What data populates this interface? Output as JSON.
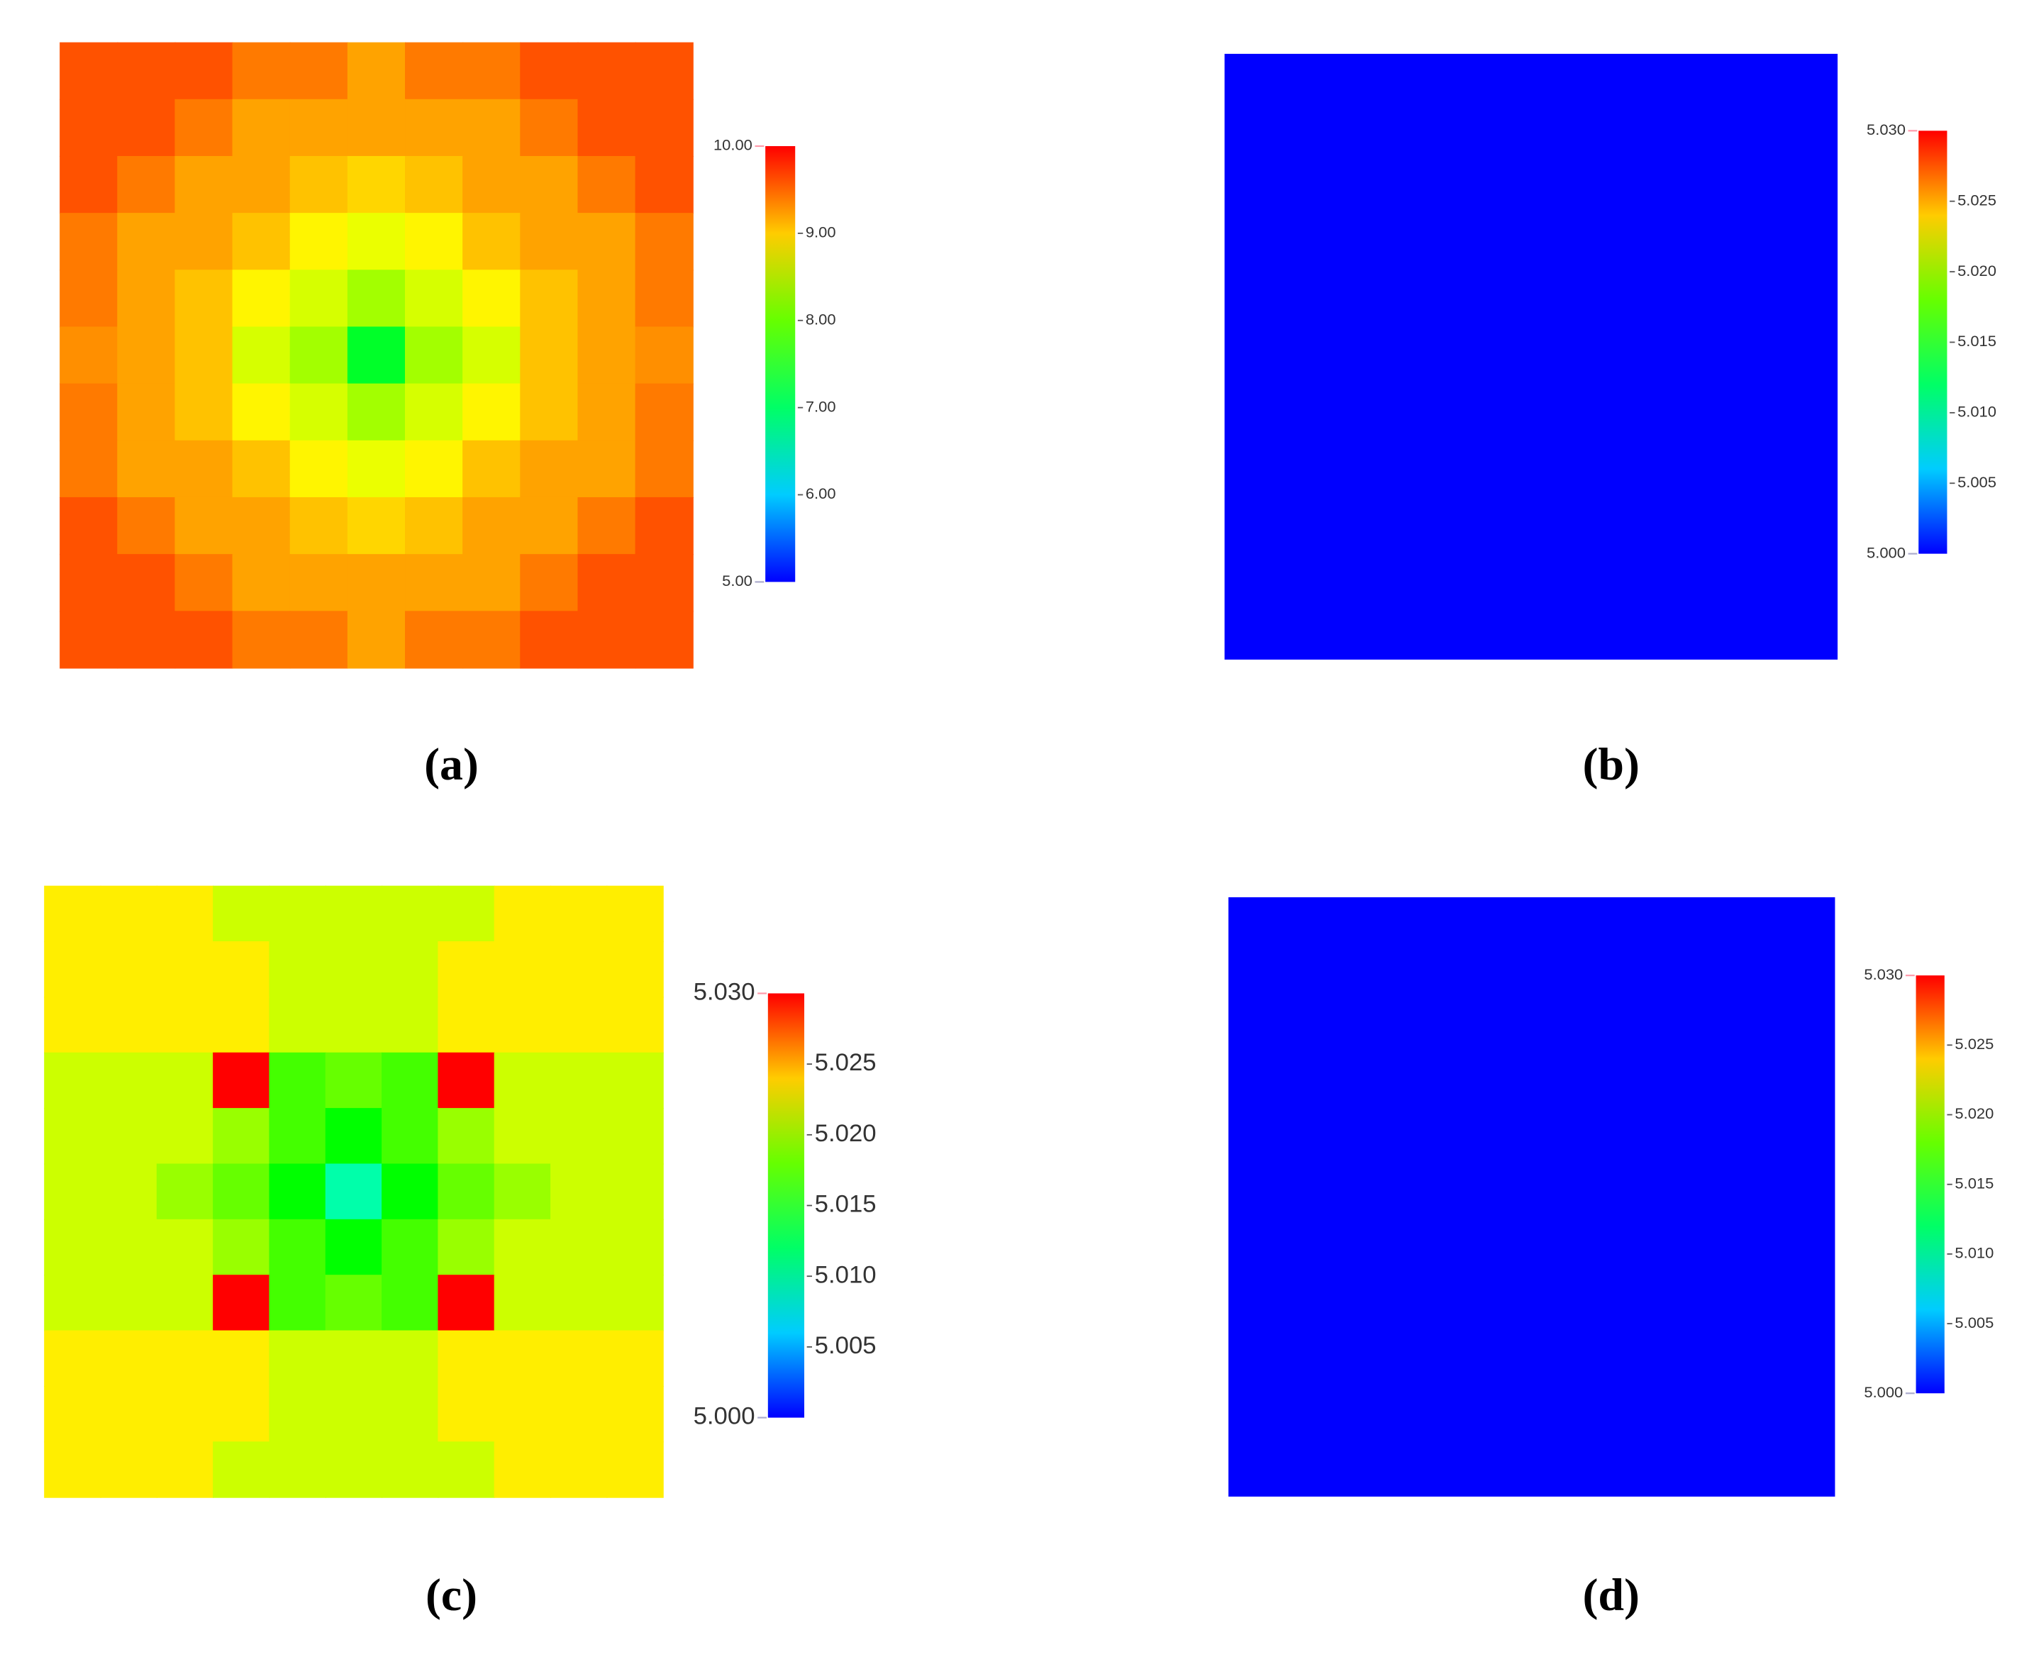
{
  "chart_data": [
    {
      "type": "heatmap",
      "label": "(a)",
      "values": [
        [
          9.6,
          9.6,
          9.6,
          9.4,
          9.4,
          9.2,
          9.4,
          9.4,
          9.6,
          9.6,
          9.6
        ],
        [
          9.6,
          9.6,
          9.4,
          9.2,
          9.2,
          9.2,
          9.2,
          9.2,
          9.4,
          9.6,
          9.6
        ],
        [
          9.6,
          9.4,
          9.2,
          9.2,
          9.05,
          8.95,
          9.05,
          9.2,
          9.2,
          9.4,
          9.6
        ],
        [
          9.4,
          9.2,
          9.2,
          9.05,
          8.8,
          8.65,
          8.8,
          9.05,
          9.2,
          9.2,
          9.4
        ],
        [
          9.4,
          9.2,
          9.05,
          8.8,
          8.55,
          8.3,
          8.55,
          8.8,
          9.05,
          9.2,
          9.4
        ],
        [
          9.3,
          9.2,
          9.05,
          8.55,
          8.3,
          7.3,
          8.3,
          8.55,
          9.05,
          9.2,
          9.3
        ],
        [
          9.4,
          9.2,
          9.05,
          8.8,
          8.55,
          8.3,
          8.55,
          8.8,
          9.05,
          9.2,
          9.4
        ],
        [
          9.4,
          9.2,
          9.2,
          9.05,
          8.8,
          8.65,
          8.8,
          9.05,
          9.2,
          9.2,
          9.4
        ],
        [
          9.6,
          9.4,
          9.2,
          9.2,
          9.05,
          8.95,
          9.05,
          9.2,
          9.2,
          9.4,
          9.6
        ],
        [
          9.6,
          9.6,
          9.4,
          9.2,
          9.2,
          9.2,
          9.2,
          9.2,
          9.4,
          9.6,
          9.6
        ],
        [
          9.6,
          9.6,
          9.6,
          9.4,
          9.4,
          9.2,
          9.4,
          9.4,
          9.6,
          9.6,
          9.6
        ]
      ],
      "clim": [
        5,
        10
      ],
      "cticks": [
        {
          "value": 5,
          "label": "5.00"
        },
        {
          "value": 6,
          "label": "6.00"
        },
        {
          "value": 7,
          "label": "7.00"
        },
        {
          "value": 8,
          "label": "8.00"
        },
        {
          "value": 9,
          "label": "9.00"
        },
        {
          "value": 10,
          "label": "10.00"
        }
      ]
    },
    {
      "type": "heatmap",
      "label": "(b)",
      "values": [
        [
          5
        ]
      ],
      "clim": [
        5,
        5.03
      ],
      "cticks": [
        {
          "value": 5,
          "label": "5.000"
        },
        5.005,
        {
          "value": 5.01,
          "label": "5.010"
        },
        5.015,
        {
          "value": 5.02,
          "label": "5.020"
        },
        5.025,
        {
          "value": 5.03,
          "label": "5.030"
        }
      ]
    },
    {
      "type": "heatmap",
      "label": "(c)",
      "values": [
        [
          5.023,
          5.023,
          5.023,
          5.021,
          5.021,
          5.021,
          5.021,
          5.021,
          5.023,
          5.023,
          5.023
        ],
        [
          5.023,
          5.023,
          5.023,
          5.023,
          5.021,
          5.021,
          5.021,
          5.023,
          5.023,
          5.023,
          5.023
        ],
        [
          5.023,
          5.023,
          5.023,
          5.023,
          5.021,
          5.021,
          5.021,
          5.023,
          5.023,
          5.023,
          5.023
        ],
        [
          5.021,
          5.021,
          5.021,
          5.03,
          5.017,
          5.018,
          5.017,
          5.03,
          5.021,
          5.021,
          5.021
        ],
        [
          5.021,
          5.021,
          5.021,
          5.0195,
          5.017,
          5.015,
          5.017,
          5.0195,
          5.021,
          5.021,
          5.021
        ],
        [
          5.021,
          5.021,
          5.0195,
          5.018,
          5.015,
          5.01,
          5.015,
          5.018,
          5.0195,
          5.021,
          5.021
        ],
        [
          5.021,
          5.021,
          5.021,
          5.0195,
          5.017,
          5.015,
          5.017,
          5.0195,
          5.021,
          5.021,
          5.021
        ],
        [
          5.021,
          5.021,
          5.021,
          5.03,
          5.017,
          5.018,
          5.017,
          5.03,
          5.021,
          5.021,
          5.021
        ],
        [
          5.023,
          5.023,
          5.023,
          5.023,
          5.021,
          5.021,
          5.021,
          5.023,
          5.023,
          5.023,
          5.023
        ],
        [
          5.023,
          5.023,
          5.023,
          5.023,
          5.021,
          5.021,
          5.021,
          5.023,
          5.023,
          5.023,
          5.023
        ],
        [
          5.023,
          5.023,
          5.023,
          5.021,
          5.021,
          5.021,
          5.021,
          5.021,
          5.023,
          5.023,
          5.023
        ]
      ],
      "clim": [
        5,
        5.03
      ],
      "cticks": [
        {
          "value": 5,
          "label": "5.000"
        },
        5.005,
        {
          "value": 5.01,
          "label": "5.010"
        },
        5.015,
        {
          "value": 5.02,
          "label": "5.020"
        },
        5.025,
        {
          "value": 5.03,
          "label": "5.030"
        }
      ]
    },
    {
      "type": "heatmap",
      "label": "(d)",
      "values": [
        [
          5
        ]
      ],
      "clim": [
        5,
        5.03
      ],
      "cticks": [
        {
          "value": 5,
          "label": "5.000"
        },
        5.005,
        {
          "value": 5.01,
          "label": "5.010"
        },
        5.015,
        {
          "value": 5.02,
          "label": "5.020"
        },
        5.025,
        {
          "value": 5.03,
          "label": "5.030"
        }
      ]
    }
  ]
}
